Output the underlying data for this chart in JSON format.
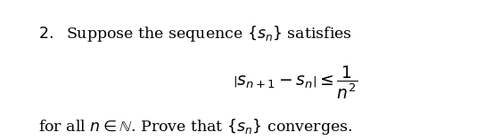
{
  "background_color": "#ffffff",
  "line1": "2.\\quad \\text{Suppose the sequence } \\{s_n\\} \\text{ satisfies}",
  "line2": "\\left|s_{n+1} - s_n\\right| \\leq \\dfrac{1}{n^2}",
  "line3": "\\text{for all } n \\in \\mathbb{N}. \\text{ Prove that } \\{s_n\\} \\text{ converges.}",
  "text_color": "#000000",
  "fig_width": 5.35,
  "fig_height": 1.58,
  "dpi": 100
}
